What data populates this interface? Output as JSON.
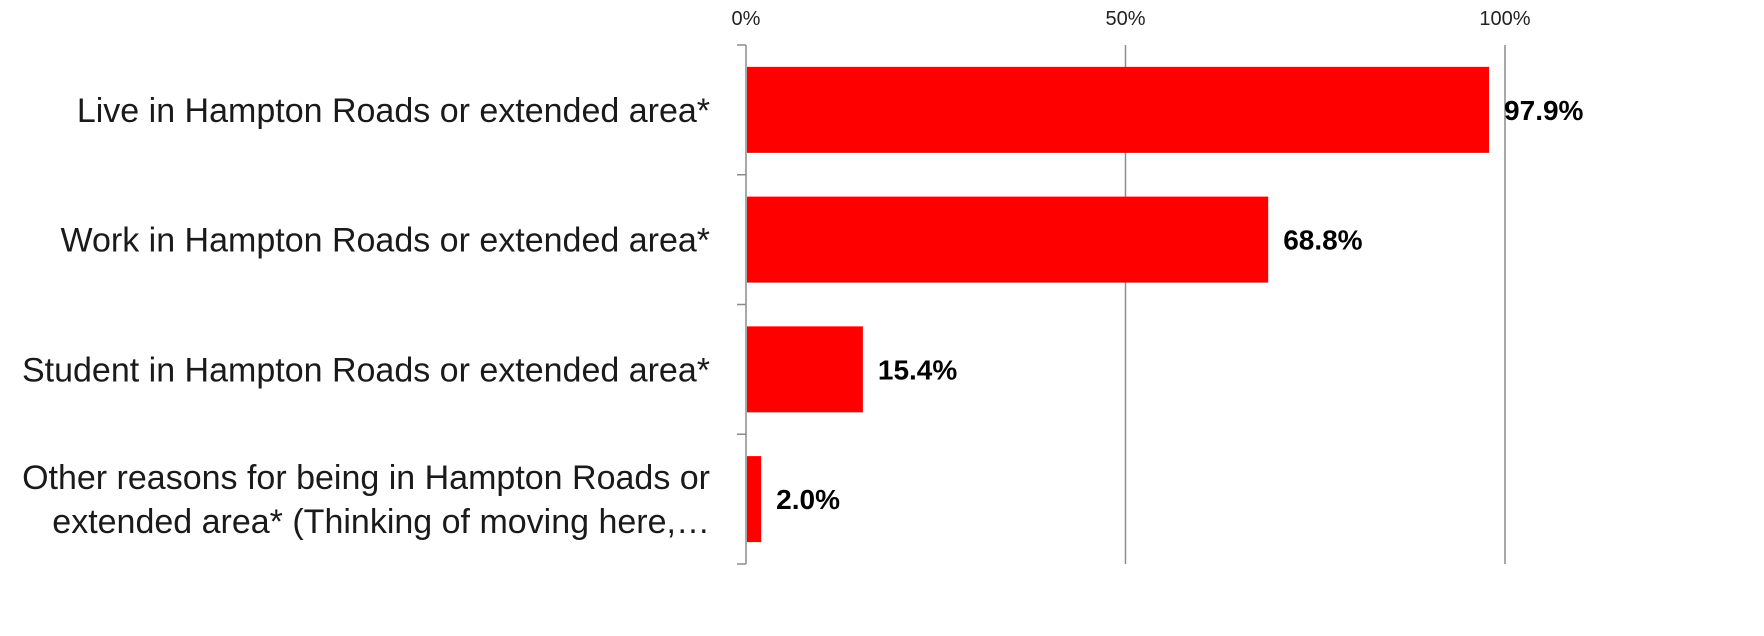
{
  "chart_data": {
    "type": "bar",
    "orientation": "horizontal",
    "categories": [
      [
        "Live in Hampton Roads or extended area*"
      ],
      [
        "Work in Hampton Roads or extended area*"
      ],
      [
        "Student in Hampton Roads or extended area*"
      ],
      [
        "Other reasons for being in Hampton Roads or",
        "extended area* (Thinking of moving here,…"
      ]
    ],
    "values": [
      97.9,
      68.8,
      15.4,
      2.0
    ],
    "value_labels": [
      "97.9%",
      "68.8%",
      "15.4%",
      "2.0%"
    ],
    "xlim": [
      0,
      100
    ],
    "x_ticks": [
      0,
      50,
      100
    ],
    "x_tick_labels": [
      "0%",
      "50%",
      "100%"
    ],
    "x_axis_position": "top",
    "grid": true,
    "legend": "none",
    "title": "",
    "xlabel": "",
    "ylabel": "",
    "colors": {
      "bar": "#ff0000",
      "grid": "#8c8c8c",
      "axis": "#8c8c8c",
      "text": "#000000"
    }
  }
}
